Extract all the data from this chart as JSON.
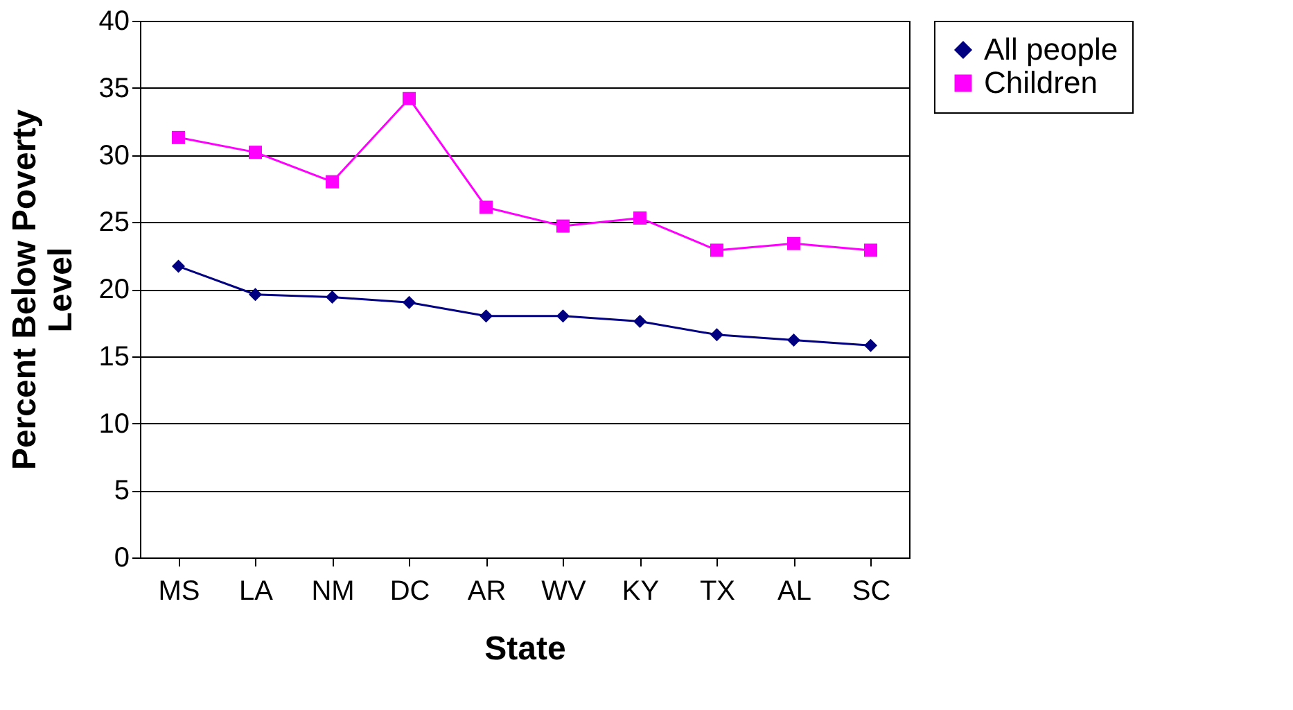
{
  "chart_data": {
    "type": "line",
    "xlabel": "State",
    "ylabel": "Percent Below Poverty\nLevel",
    "categories": [
      "MS",
      "LA",
      "NM",
      "DC",
      "AR",
      "WV",
      "KY",
      "TX",
      "AL",
      "SC"
    ],
    "series": [
      {
        "name": "All people",
        "color": "#000080",
        "marker": "diamond",
        "values": [
          21.7,
          19.6,
          19.4,
          19.0,
          18.0,
          18.0,
          17.6,
          16.6,
          16.2,
          15.8
        ]
      },
      {
        "name": "Children",
        "color": "#ff00ff",
        "marker": "square",
        "values": [
          31.3,
          30.2,
          28.0,
          34.2,
          26.1,
          24.7,
          25.3,
          22.9,
          23.4,
          22.9
        ]
      }
    ],
    "ylim": [
      0,
      40
    ],
    "yticks": [
      0,
      5,
      10,
      15,
      20,
      25,
      30,
      35,
      40
    ],
    "grid": "y",
    "legend": "right",
    "line_style": "solid"
  }
}
